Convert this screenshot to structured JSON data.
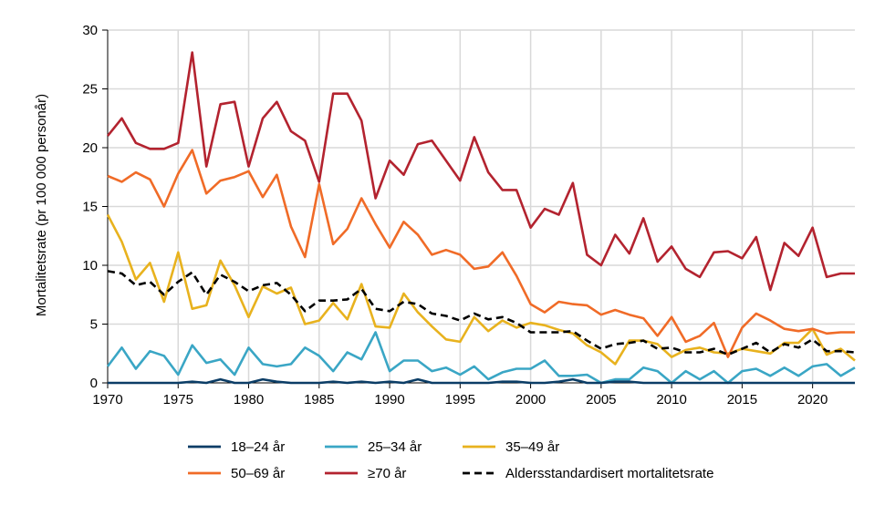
{
  "chart_data": {
    "type": "line",
    "ylabel": "Mortalitetsrate (pr 100 000 personår)",
    "xlabel": "",
    "xlim": [
      1970,
      2023
    ],
    "ylim": [
      0,
      30
    ],
    "xticks": [
      1970,
      1975,
      1980,
      1985,
      1990,
      1995,
      2000,
      2005,
      2010,
      2015,
      2020
    ],
    "yticks": [
      0,
      5,
      10,
      15,
      20,
      25,
      30
    ],
    "grid": true,
    "legend_position": "bottom",
    "x": [
      1970,
      1971,
      1972,
      1973,
      1974,
      1975,
      1976,
      1977,
      1978,
      1979,
      1980,
      1981,
      1982,
      1983,
      1984,
      1985,
      1986,
      1987,
      1988,
      1989,
      1990,
      1991,
      1992,
      1993,
      1994,
      1995,
      1996,
      1997,
      1998,
      1999,
      2000,
      2001,
      2002,
      2003,
      2004,
      2005,
      2006,
      2007,
      2008,
      2009,
      2010,
      2011,
      2012,
      2013,
      2014,
      2015,
      2016,
      2017,
      2018,
      2019,
      2020,
      2021,
      2022,
      2023
    ],
    "series": [
      {
        "name": "18–24 år",
        "color": "#0b3d66",
        "dash": "none",
        "values": [
          0,
          0,
          0,
          0,
          0,
          0,
          0.1,
          0,
          0.3,
          0,
          0,
          0.3,
          0.1,
          0,
          0,
          0,
          0.1,
          0,
          0.1,
          0,
          0.1,
          0,
          0.3,
          0,
          0,
          0,
          0,
          0,
          0.1,
          0.1,
          0,
          0,
          0.1,
          0.3,
          0,
          0,
          0.1,
          0.1,
          0,
          0,
          0,
          0,
          0,
          0,
          0,
          0,
          0,
          0,
          0,
          0,
          0,
          0,
          0,
          0
        ]
      },
      {
        "name": "25–34 år",
        "color": "#3aa6c5",
        "dash": "none",
        "values": [
          1.4,
          3.0,
          1.2,
          2.7,
          2.3,
          0.7,
          3.2,
          1.7,
          2.0,
          0.7,
          3.0,
          1.6,
          1.4,
          1.6,
          3.0,
          2.3,
          1.0,
          2.6,
          2.0,
          4.3,
          1.0,
          1.9,
          1.9,
          1.0,
          1.3,
          0.7,
          1.4,
          0.3,
          0.9,
          1.2,
          1.2,
          1.9,
          0.6,
          0.6,
          0.7,
          0,
          0.3,
          0.3,
          1.3,
          1.0,
          0,
          1.0,
          0.3,
          1.0,
          0,
          1.0,
          1.2,
          0.6,
          1.3,
          0.6,
          1.4,
          1.6,
          0.6,
          1.3
        ]
      },
      {
        "name": "35–49 år",
        "color": "#e8b21e",
        "dash": "none",
        "values": [
          14.3,
          12.0,
          8.8,
          10.2,
          6.9,
          11.1,
          6.3,
          6.6,
          10.4,
          8.3,
          5.6,
          8.2,
          7.6,
          8.1,
          5.0,
          5.3,
          6.8,
          5.4,
          8.4,
          4.8,
          4.7,
          7.6,
          6.0,
          4.8,
          3.7,
          3.5,
          5.6,
          4.4,
          5.3,
          4.7,
          5.1,
          4.9,
          4.5,
          4.2,
          3.2,
          2.6,
          1.6,
          3.6,
          3.6,
          3.3,
          2.2,
          2.8,
          3.0,
          2.6,
          2.5,
          2.9,
          2.7,
          2.5,
          3.4,
          3.4,
          4.6,
          2.4,
          2.9,
          1.9
        ]
      },
      {
        "name": "50–69 år",
        "color": "#f06b27",
        "dash": "none",
        "values": [
          17.6,
          17.1,
          17.9,
          17.3,
          15.0,
          17.8,
          19.8,
          16.1,
          17.2,
          17.5,
          18.0,
          15.8,
          17.7,
          13.3,
          10.7,
          16.9,
          11.8,
          13.1,
          15.7,
          13.5,
          11.5,
          13.7,
          12.6,
          10.9,
          11.3,
          10.9,
          9.7,
          9.9,
          11.1,
          9.1,
          6.7,
          6.0,
          6.9,
          6.7,
          6.6,
          5.8,
          6.2,
          5.8,
          5.5,
          4.0,
          5.6,
          3.5,
          4.0,
          5.1,
          2.2,
          4.7,
          5.9,
          5.3,
          4.6,
          4.4,
          4.6,
          4.2,
          4.3,
          4.3
        ]
      },
      {
        "name": "≥70 år",
        "color": "#b3232f",
        "dash": "none",
        "values": [
          21.0,
          22.5,
          20.4,
          19.9,
          19.9,
          20.4,
          28.1,
          18.4,
          23.7,
          23.9,
          18.4,
          22.5,
          23.9,
          21.4,
          20.6,
          17.1,
          24.6,
          24.6,
          22.3,
          15.7,
          18.9,
          17.7,
          20.3,
          20.6,
          18.9,
          17.2,
          20.9,
          17.9,
          16.4,
          16.4,
          13.2,
          14.8,
          14.3,
          17.0,
          10.9,
          10.0,
          12.6,
          11.0,
          14.0,
          10.3,
          11.6,
          9.7,
          9.0,
          11.1,
          11.2,
          10.6,
          12.4,
          7.9,
          11.9,
          10.8,
          13.2,
          9.0,
          9.3,
          9.3
        ]
      },
      {
        "name": "Aldersstandardisert mortalitetsrate",
        "color": "#000000",
        "dash": "8,5",
        "values": [
          9.5,
          9.3,
          8.3,
          8.6,
          7.5,
          8.6,
          9.4,
          7.5,
          9.2,
          8.6,
          7.8,
          8.3,
          8.5,
          7.5,
          6.1,
          7.0,
          7.0,
          7.1,
          8.0,
          6.3,
          6.1,
          6.9,
          6.7,
          5.9,
          5.7,
          5.3,
          5.9,
          5.4,
          5.6,
          5.1,
          4.3,
          4.3,
          4.3,
          4.4,
          3.6,
          2.9,
          3.3,
          3.4,
          3.6,
          2.9,
          3.0,
          2.6,
          2.6,
          2.9,
          2.4,
          2.9,
          3.4,
          2.6,
          3.3,
          3.0,
          3.7,
          2.7,
          2.7,
          2.6
        ]
      }
    ]
  }
}
